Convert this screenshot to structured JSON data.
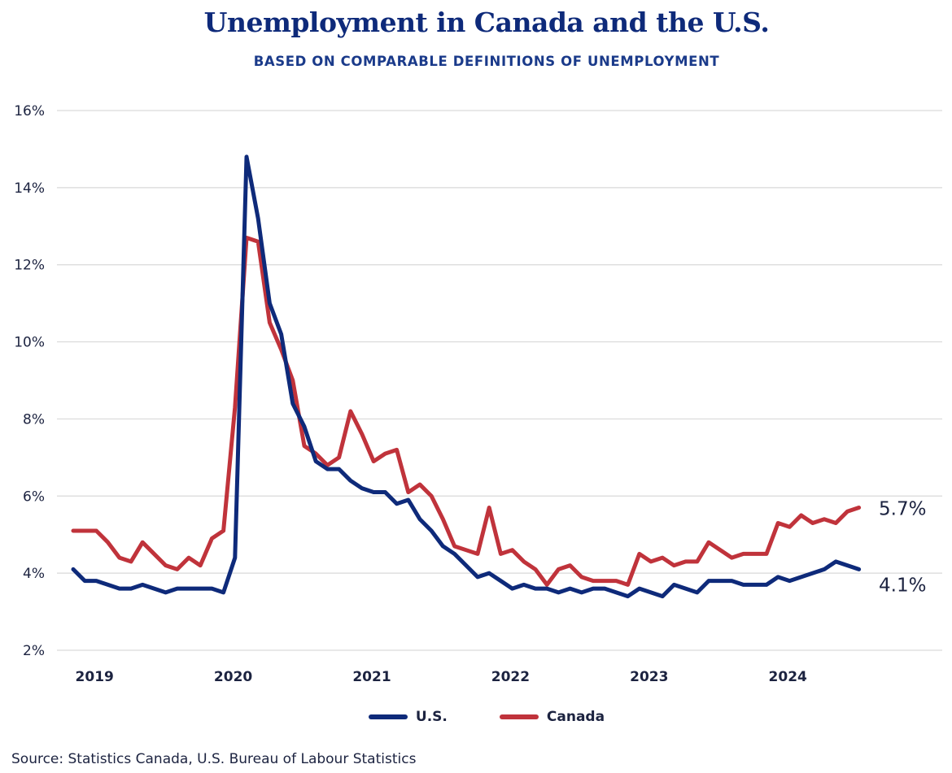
{
  "title": "Unemployment in Canada and the U.S.",
  "subtitle": "BASED ON COMPARABLE DEFINITIONS OF UNEMPLOYMENT",
  "source": "Source: Statistics Canada, U.S. Bureau of Labour Statistics",
  "legend": {
    "us_label": "U.S.",
    "canada_label": "Canada"
  },
  "colors": {
    "us": "#0e2a7a",
    "canada": "#c0333b",
    "grid": "#d9d9d9",
    "text": "#1c2340"
  },
  "chart_data": {
    "type": "line",
    "x_unit": "month",
    "x_start": "2018-12",
    "x_end": "2024-08",
    "x_tick_labels": [
      "2019",
      "2020",
      "2021",
      "2022",
      "2023",
      "2024"
    ],
    "y_tick_labels": [
      "16%",
      "14%",
      "12%",
      "10%",
      "8%",
      "6%",
      "4%",
      "2%"
    ],
    "ylim": [
      2,
      16
    ],
    "y_unit": "%",
    "grid": "horizontal",
    "legend_placement": "bottom-center",
    "end_labels": {
      "canada": "5.7%",
      "us": "4.1%"
    },
    "series": [
      {
        "name": "U.S.",
        "key": "us",
        "start": "2018-12",
        "values": [
          4.1,
          3.8,
          3.8,
          3.7,
          3.6,
          3.6,
          3.7,
          3.6,
          3.5,
          3.6,
          3.6,
          3.6,
          3.6,
          3.5,
          4.4,
          14.8,
          13.2,
          11.0,
          10.2,
          8.4,
          7.8,
          6.9,
          6.7,
          6.7,
          6.4,
          6.2,
          6.1,
          6.1,
          5.8,
          5.9,
          5.4,
          5.1,
          4.7,
          4.5,
          4.2,
          3.9,
          4.0,
          3.8,
          3.6,
          3.7,
          3.6,
          3.6,
          3.5,
          3.6,
          3.5,
          3.6,
          3.6,
          3.5,
          3.4,
          3.6,
          3.5,
          3.4,
          3.7,
          3.6,
          3.5,
          3.8,
          3.8,
          3.8,
          3.7,
          3.7,
          3.7,
          3.9,
          3.8,
          3.9,
          4.0,
          4.1,
          4.3,
          4.2,
          4.1
        ]
      },
      {
        "name": "Canada",
        "key": "canada",
        "start": "2018-12",
        "values": [
          5.1,
          5.1,
          5.1,
          4.8,
          4.4,
          4.3,
          4.8,
          4.5,
          4.2,
          4.1,
          4.4,
          4.2,
          4.9,
          5.1,
          8.3,
          12.7,
          12.6,
          10.5,
          9.8,
          9.0,
          7.3,
          7.1,
          6.8,
          7.0,
          8.2,
          7.6,
          6.9,
          7.1,
          7.2,
          6.1,
          6.3,
          6.0,
          5.4,
          4.7,
          4.6,
          4.5,
          5.7,
          4.5,
          4.6,
          4.3,
          4.1,
          3.7,
          4.1,
          4.2,
          3.9,
          3.8,
          3.8,
          3.8,
          3.7,
          4.5,
          4.3,
          4.4,
          4.2,
          4.3,
          4.3,
          4.8,
          4.6,
          4.4,
          4.5,
          4.5,
          4.5,
          5.3,
          5.2,
          5.5,
          5.3,
          5.4,
          5.3,
          5.6,
          5.7
        ]
      }
    ]
  }
}
